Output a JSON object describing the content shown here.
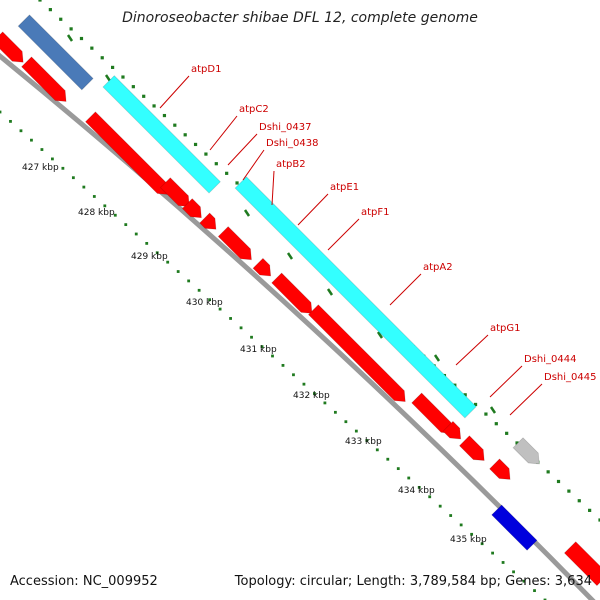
{
  "title": "Dinoroseobacter shibae DFL 12, complete genome",
  "footer": {
    "accession_label": "Accession:",
    "accession": "NC_009952",
    "topology_label": "Topology:",
    "topology": "circular",
    "length_label": "Length:",
    "length": "3,789,584 bp",
    "genes_label": "Genes:",
    "genes": "3,634"
  },
  "colors": {
    "gene_red": "#ff0000",
    "rna_cyan": "#33ffff",
    "steel_blue": "#4a7ab8",
    "blue": "#0000dd",
    "grey": "#c0c0c0",
    "label_red": "#cc0000",
    "tick_green": "#1f7a1f",
    "backbone": "#888888"
  },
  "scale": {
    "labels": [
      "427 kbp",
      "428 kbp",
      "429 kbp",
      "430 kbp",
      "431 kbp",
      "432 kbp",
      "433 kbp",
      "434 kbp",
      "435 kbp"
    ]
  },
  "gene_labels": [
    "atpD1",
    "atpC2",
    "Dshi_0437",
    "Dshi_0438",
    "atpB2",
    "atpE1",
    "atpF1",
    "atpA2",
    "atpG1",
    "Dshi_0444",
    "Dshi_0445"
  ]
}
